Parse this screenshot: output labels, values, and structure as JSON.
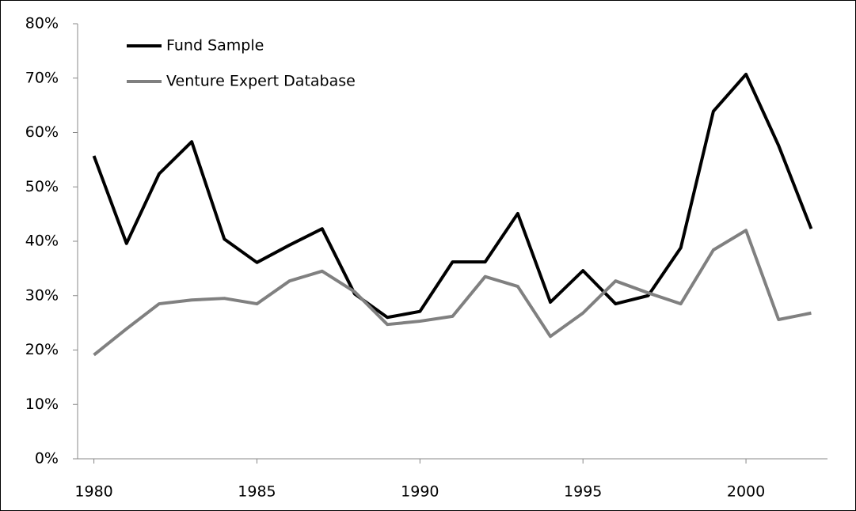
{
  "chart_data": {
    "type": "line",
    "x": [
      1980,
      1981,
      1982,
      1983,
      1984,
      1985,
      1986,
      1987,
      1988,
      1989,
      1990,
      1991,
      1992,
      1993,
      1994,
      1995,
      1996,
      1997,
      1998,
      1999,
      2000,
      2001,
      2002
    ],
    "series": [
      {
        "name": "Fund Sample",
        "color": "#000000",
        "values": [
          55.7,
          39.6,
          52.4,
          58.3,
          40.4,
          36.1,
          39.3,
          42.3,
          30.3,
          26.0,
          27.1,
          36.2,
          36.2,
          45.1,
          28.8,
          34.6,
          28.5,
          30.0,
          38.8,
          63.9,
          70.7,
          57.6,
          42.3
        ]
      },
      {
        "name": "Venture Expert Database",
        "color": "#808080",
        "values": [
          19.1,
          23.9,
          28.5,
          29.2,
          29.5,
          28.5,
          32.7,
          34.5,
          30.7,
          24.7,
          25.3,
          26.2,
          33.5,
          31.7,
          22.5,
          26.8,
          32.7,
          30.5,
          28.5,
          38.4,
          42.0,
          25.6,
          26.8
        ]
      }
    ],
    "xlim": [
      1979.5,
      2002.5
    ],
    "xticks": [
      1980,
      1985,
      1990,
      1995,
      2000
    ],
    "ylim": [
      0,
      80
    ],
    "yticks": [
      {
        "value": 0,
        "label": "0%"
      },
      {
        "value": 10,
        "label": "10%"
      },
      {
        "value": 20,
        "label": "20%"
      },
      {
        "value": 30,
        "label": "30%"
      },
      {
        "value": 40,
        "label": "40%"
      },
      {
        "value": 50,
        "label": "50%"
      },
      {
        "value": 60,
        "label": "60%"
      },
      {
        "value": 70,
        "label": "70%"
      },
      {
        "value": 80,
        "label": "80%"
      }
    ],
    "legend": "top-left"
  }
}
